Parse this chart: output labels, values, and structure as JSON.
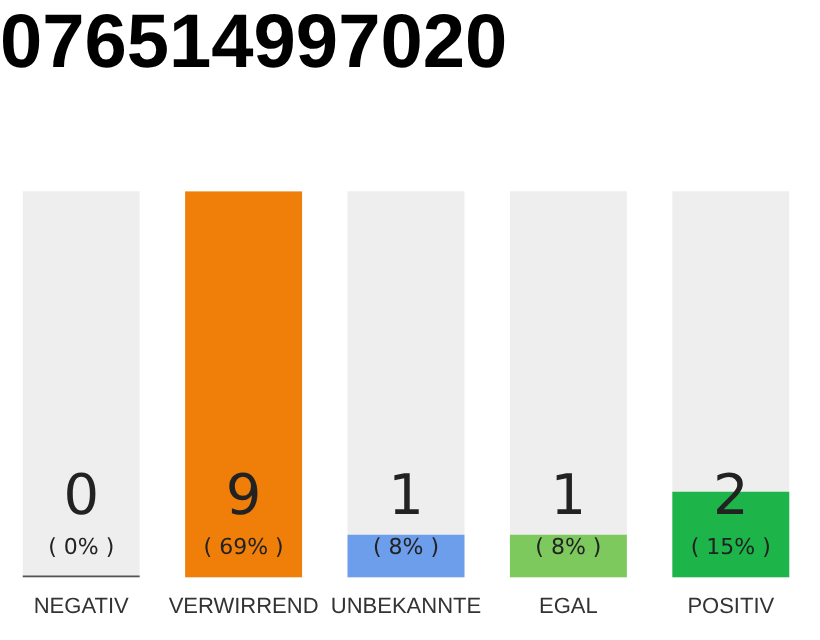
{
  "chart_data": {
    "type": "bar",
    "title": "076514997020",
    "categories": [
      "NEGATIV",
      "VERWIRREND",
      "UNBEKANNTE",
      "EGAL",
      "POSITIV"
    ],
    "values": [
      0,
      9,
      1,
      1,
      2
    ],
    "colors": [
      "#555555",
      "#f07f09",
      "#6d9eeb",
      "#7dc95e",
      "#1db54a"
    ],
    "value_labels": [
      "0",
      "9",
      "1",
      "1",
      "2"
    ],
    "annotations": [
      "( 0% )",
      "( 69% )",
      "( 8% )",
      "( 8% )",
      "( 15% )"
    ],
    "grid": false,
    "legend": false
  }
}
